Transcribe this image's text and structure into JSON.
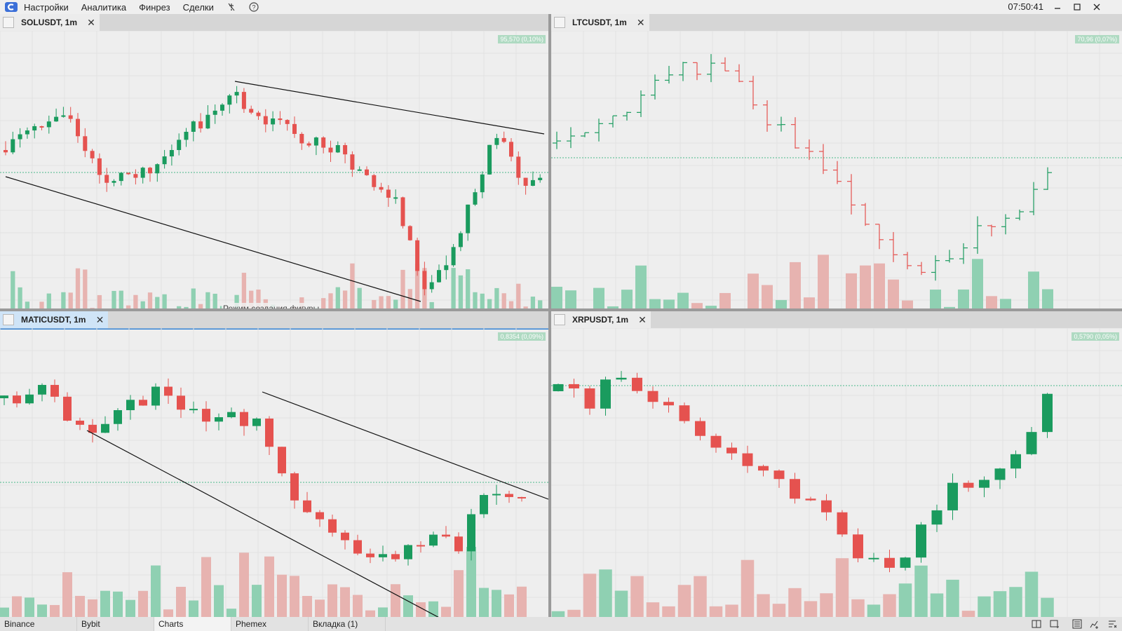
{
  "menu": {
    "items": [
      "Настройки",
      "Аналитика",
      "Финрез",
      "Сделки"
    ],
    "icons": [
      "mute-icon",
      "help-icon"
    ],
    "clock": "07:50:41"
  },
  "colors": {
    "up": "#1a9b5e",
    "down": "#e5524f",
    "up_vol": "#8fd0b2",
    "down_vol": "#e7b3b0"
  },
  "panels": [
    {
      "id": "sol",
      "title": "SOLUSDT, 1m",
      "active": false,
      "price_tag": "95,570 (0,10%)",
      "style": "candles"
    },
    {
      "id": "ltc",
      "title": "LTCUSDT, 1m",
      "active": false,
      "price_tag": "70,96 (0,07%)",
      "style": "bars"
    },
    {
      "id": "matic",
      "title": "MATICUSDT, 1m",
      "active": true,
      "price_tag": "0,8354 (0,09%)",
      "style": "candles"
    },
    {
      "id": "xrp",
      "title": "XRPUSDT, 1m",
      "active": false,
      "price_tag": "0,5790 (0,05%)",
      "style": "candles"
    }
  ],
  "status_text": "Режим создания фигуры",
  "bottom_tabs": [
    "Binance",
    "Bybit",
    "Charts",
    "Phemex",
    "Вкладка (1)"
  ],
  "selected_bottom_tab": "Charts",
  "bottom_icons": [
    "layout-icon",
    "window-add-icon",
    "list-icon",
    "chart-add-icon",
    "settings-list-icon"
  ]
}
